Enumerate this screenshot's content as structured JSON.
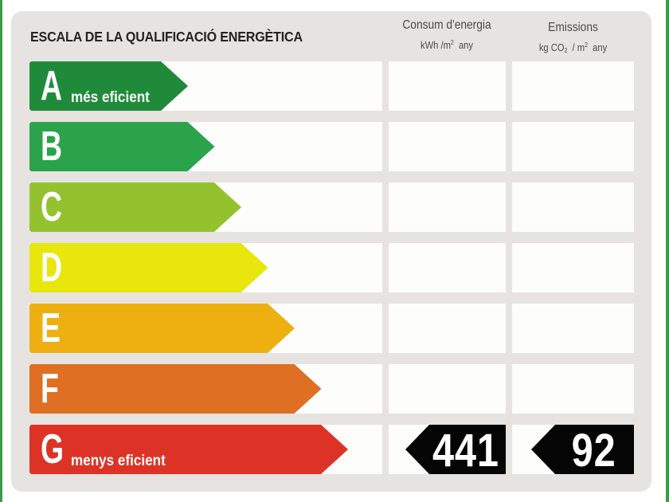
{
  "title": "ESCALA DE LA QUALIFICACIÓ ENERGÈTICA",
  "energy_header": {
    "title": "Consum d'energia",
    "unit_prefix": "kWh /m",
    "unit_exp": "2",
    "unit_suffix": "any"
  },
  "emissions_header": {
    "title": "Emissions",
    "unit_prefix": "kg CO",
    "unit_sub": "2",
    "unit_mid": "/ m",
    "unit_exp": "2",
    "unit_suffix": "any"
  },
  "classes": [
    {
      "letter": "A",
      "label": "més eficient",
      "color": "#1f8b3a"
    },
    {
      "letter": "B",
      "label": "",
      "color": "#2aa34a"
    },
    {
      "letter": "C",
      "label": "",
      "color": "#94c22e"
    },
    {
      "letter": "D",
      "label": "",
      "color": "#e8e60c"
    },
    {
      "letter": "E",
      "label": "",
      "color": "#eeaf10"
    },
    {
      "letter": "F",
      "label": "",
      "color": "#df6f23"
    },
    {
      "letter": "G",
      "label": "menys eficient",
      "color": "#dd3327"
    }
  ],
  "rating": {
    "class": "G",
    "energy_value": "441",
    "emissions_value": "92"
  }
}
